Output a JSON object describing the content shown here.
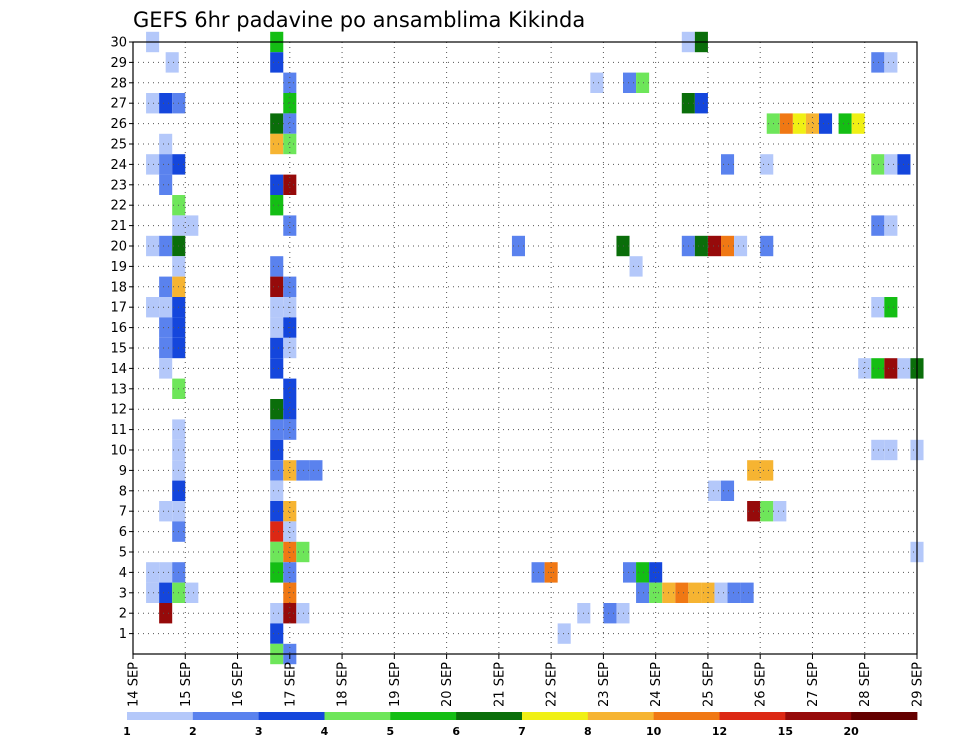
{
  "chart_data": {
    "type": "heatmap",
    "title": "GEFS 6hr padavine po ansamblima Kikinda",
    "x_tick_labels": [
      "14 SEP",
      "15 SEP",
      "16 SEP",
      "17 SEP",
      "18 SEP",
      "19 SEP",
      "20 SEP",
      "21 SEP",
      "22 SEP",
      "23 SEP",
      "24 SEP",
      "25 SEP",
      "26 SEP",
      "27 SEP",
      "28 SEP",
      "29 SEP"
    ],
    "y_tick_labels": [
      "1",
      "2",
      "3",
      "4",
      "5",
      "6",
      "7",
      "8",
      "9",
      "10",
      "11",
      "12",
      "13",
      "14",
      "15",
      "16",
      "17",
      "18",
      "19",
      "20",
      "21",
      "22",
      "23",
      "24",
      "25",
      "26",
      "27",
      "28",
      "29",
      "30"
    ],
    "x_range_steps": [
      0,
      60
    ],
    "y_range_members": [
      0,
      30
    ],
    "grid": true,
    "legend_labels": [
      "1",
      "2",
      "3",
      "4",
      "5",
      "6",
      "7",
      "8",
      "10",
      "12",
      "15",
      "20"
    ],
    "color_scale": [
      "#b4c8fa",
      "#5a82ee",
      "#1446dc",
      "#6ee65a",
      "#14be14",
      "#0a6e0a",
      "#f0f014",
      "#f6b432",
      "#f07814",
      "#dc2814",
      "#960a0a",
      "#640000"
    ],
    "cells": [
      [
        30,
        1.5,
        1
      ],
      [
        30,
        11,
        5
      ],
      [
        30,
        42.5,
        1
      ],
      [
        30,
        43.5,
        6
      ],
      [
        29,
        3,
        1
      ],
      [
        29,
        11,
        3
      ],
      [
        29,
        57,
        2
      ],
      [
        29,
        58,
        1
      ],
      [
        28,
        12,
        2
      ],
      [
        28,
        35.5,
        1
      ],
      [
        28,
        38,
        2
      ],
      [
        28,
        39,
        4
      ],
      [
        27,
        1.5,
        1
      ],
      [
        27,
        2.5,
        3
      ],
      [
        27,
        3.5,
        2
      ],
      [
        27,
        12,
        5
      ],
      [
        27,
        42.5,
        6
      ],
      [
        27,
        43.5,
        3
      ],
      [
        26,
        11,
        6
      ],
      [
        26,
        12,
        2
      ],
      [
        26,
        49,
        4
      ],
      [
        26,
        50,
        9
      ],
      [
        26,
        51,
        7
      ],
      [
        26,
        52,
        8
      ],
      [
        26,
        53,
        3
      ],
      [
        26,
        54.5,
        5
      ],
      [
        26,
        55.5,
        7
      ],
      [
        25,
        2.5,
        1
      ],
      [
        25,
        11,
        8
      ],
      [
        25,
        12,
        4
      ],
      [
        24,
        1.5,
        1
      ],
      [
        24,
        2.5,
        2
      ],
      [
        24,
        3.5,
        3
      ],
      [
        24,
        45.5,
        2
      ],
      [
        24,
        48.5,
        1
      ],
      [
        24,
        57,
        4
      ],
      [
        24,
        58,
        1
      ],
      [
        24,
        59,
        3
      ],
      [
        23,
        2.5,
        2
      ],
      [
        23,
        11,
        3
      ],
      [
        23,
        12,
        11
      ],
      [
        22,
        3.5,
        4
      ],
      [
        22,
        11,
        5
      ],
      [
        21,
        3.5,
        1
      ],
      [
        21,
        4.5,
        1
      ],
      [
        21,
        12,
        2
      ],
      [
        21,
        57,
        2
      ],
      [
        21,
        58,
        1
      ],
      [
        20,
        1.5,
        1
      ],
      [
        20,
        2.5,
        2
      ],
      [
        20,
        3.5,
        6
      ],
      [
        20,
        29.5,
        2
      ],
      [
        20,
        37.5,
        6
      ],
      [
        20,
        42.5,
        2
      ],
      [
        20,
        43.5,
        6
      ],
      [
        20,
        44.5,
        11
      ],
      [
        20,
        45.5,
        9
      ],
      [
        20,
        46.5,
        1
      ],
      [
        20,
        48.5,
        2
      ],
      [
        19,
        3.5,
        1
      ],
      [
        19,
        11,
        2
      ],
      [
        19,
        38.5,
        1
      ],
      [
        18,
        2.5,
        2
      ],
      [
        18,
        3.5,
        8
      ],
      [
        18,
        11,
        11
      ],
      [
        18,
        12,
        2
      ],
      [
        17,
        1.5,
        1
      ],
      [
        17,
        2.5,
        1
      ],
      [
        17,
        3.5,
        3
      ],
      [
        17,
        11,
        1
      ],
      [
        17,
        12,
        1
      ],
      [
        17,
        57,
        1
      ],
      [
        17,
        58,
        5
      ],
      [
        16,
        2.5,
        2
      ],
      [
        16,
        3.5,
        3
      ],
      [
        16,
        11,
        1
      ],
      [
        16,
        12,
        3
      ],
      [
        15,
        2.5,
        2
      ],
      [
        15,
        3.5,
        3
      ],
      [
        15,
        11,
        3
      ],
      [
        15,
        12,
        1
      ],
      [
        14,
        2.5,
        1
      ],
      [
        14,
        11,
        3
      ],
      [
        14,
        56,
        1
      ],
      [
        14,
        57,
        5
      ],
      [
        14,
        58,
        11
      ],
      [
        14,
        59,
        1
      ],
      [
        14,
        60,
        6
      ],
      [
        13,
        3.5,
        4
      ],
      [
        13,
        12,
        3
      ],
      [
        12,
        11,
        6
      ],
      [
        12,
        12,
        3
      ],
      [
        11,
        3.5,
        1
      ],
      [
        11,
        11,
        2
      ],
      [
        11,
        12,
        2
      ],
      [
        10,
        3.5,
        1
      ],
      [
        10,
        11,
        3
      ],
      [
        10,
        57,
        1
      ],
      [
        10,
        58,
        1
      ],
      [
        10,
        60,
        1
      ],
      [
        9,
        3.5,
        1
      ],
      [
        9,
        11,
        2
      ],
      [
        9,
        12,
        8
      ],
      [
        9,
        13,
        2
      ],
      [
        9,
        14,
        2
      ],
      [
        9,
        47.5,
        8
      ],
      [
        9,
        48.5,
        8
      ],
      [
        8,
        3.5,
        3
      ],
      [
        8,
        11,
        1
      ],
      [
        8,
        44.5,
        1
      ],
      [
        8,
        45.5,
        2
      ],
      [
        7,
        2.5,
        1
      ],
      [
        7,
        3.5,
        1
      ],
      [
        7,
        11,
        3
      ],
      [
        7,
        12,
        8
      ],
      [
        7,
        47.5,
        11
      ],
      [
        7,
        48.5,
        4
      ],
      [
        7,
        49.5,
        1
      ],
      [
        6,
        3.5,
        2
      ],
      [
        6,
        11,
        10
      ],
      [
        6,
        12,
        1
      ],
      [
        5,
        11,
        4
      ],
      [
        5,
        12,
        9
      ],
      [
        5,
        13,
        4
      ],
      [
        5,
        60,
        1
      ],
      [
        4,
        1.5,
        1
      ],
      [
        4,
        2.5,
        1
      ],
      [
        4,
        3.5,
        2
      ],
      [
        4,
        11,
        5
      ],
      [
        4,
        12,
        2
      ],
      [
        4,
        31,
        2
      ],
      [
        4,
        32,
        9
      ],
      [
        4,
        38,
        2
      ],
      [
        4,
        39,
        5
      ],
      [
        4,
        40,
        3
      ],
      [
        3,
        1.5,
        1
      ],
      [
        3,
        2.5,
        3
      ],
      [
        3,
        3.5,
        4
      ],
      [
        3,
        4.5,
        1
      ],
      [
        3,
        12,
        9
      ],
      [
        3,
        39,
        2
      ],
      [
        3,
        40,
        4
      ],
      [
        3,
        41,
        8
      ],
      [
        3,
        42,
        9
      ],
      [
        3,
        43,
        8
      ],
      [
        3,
        44,
        8
      ],
      [
        3,
        45,
        1
      ],
      [
        3,
        46,
        2
      ],
      [
        3,
        47,
        2
      ],
      [
        2,
        2.5,
        11
      ],
      [
        2,
        11,
        1
      ],
      [
        2,
        12,
        11
      ],
      [
        2,
        13,
        1
      ],
      [
        2,
        34.5,
        1
      ],
      [
        2,
        36.5,
        2
      ],
      [
        2,
        37.5,
        1
      ],
      [
        1,
        11,
        3
      ],
      [
        1,
        33,
        1
      ],
      [
        0,
        11,
        4
      ],
      [
        0,
        12,
        2
      ]
    ]
  }
}
